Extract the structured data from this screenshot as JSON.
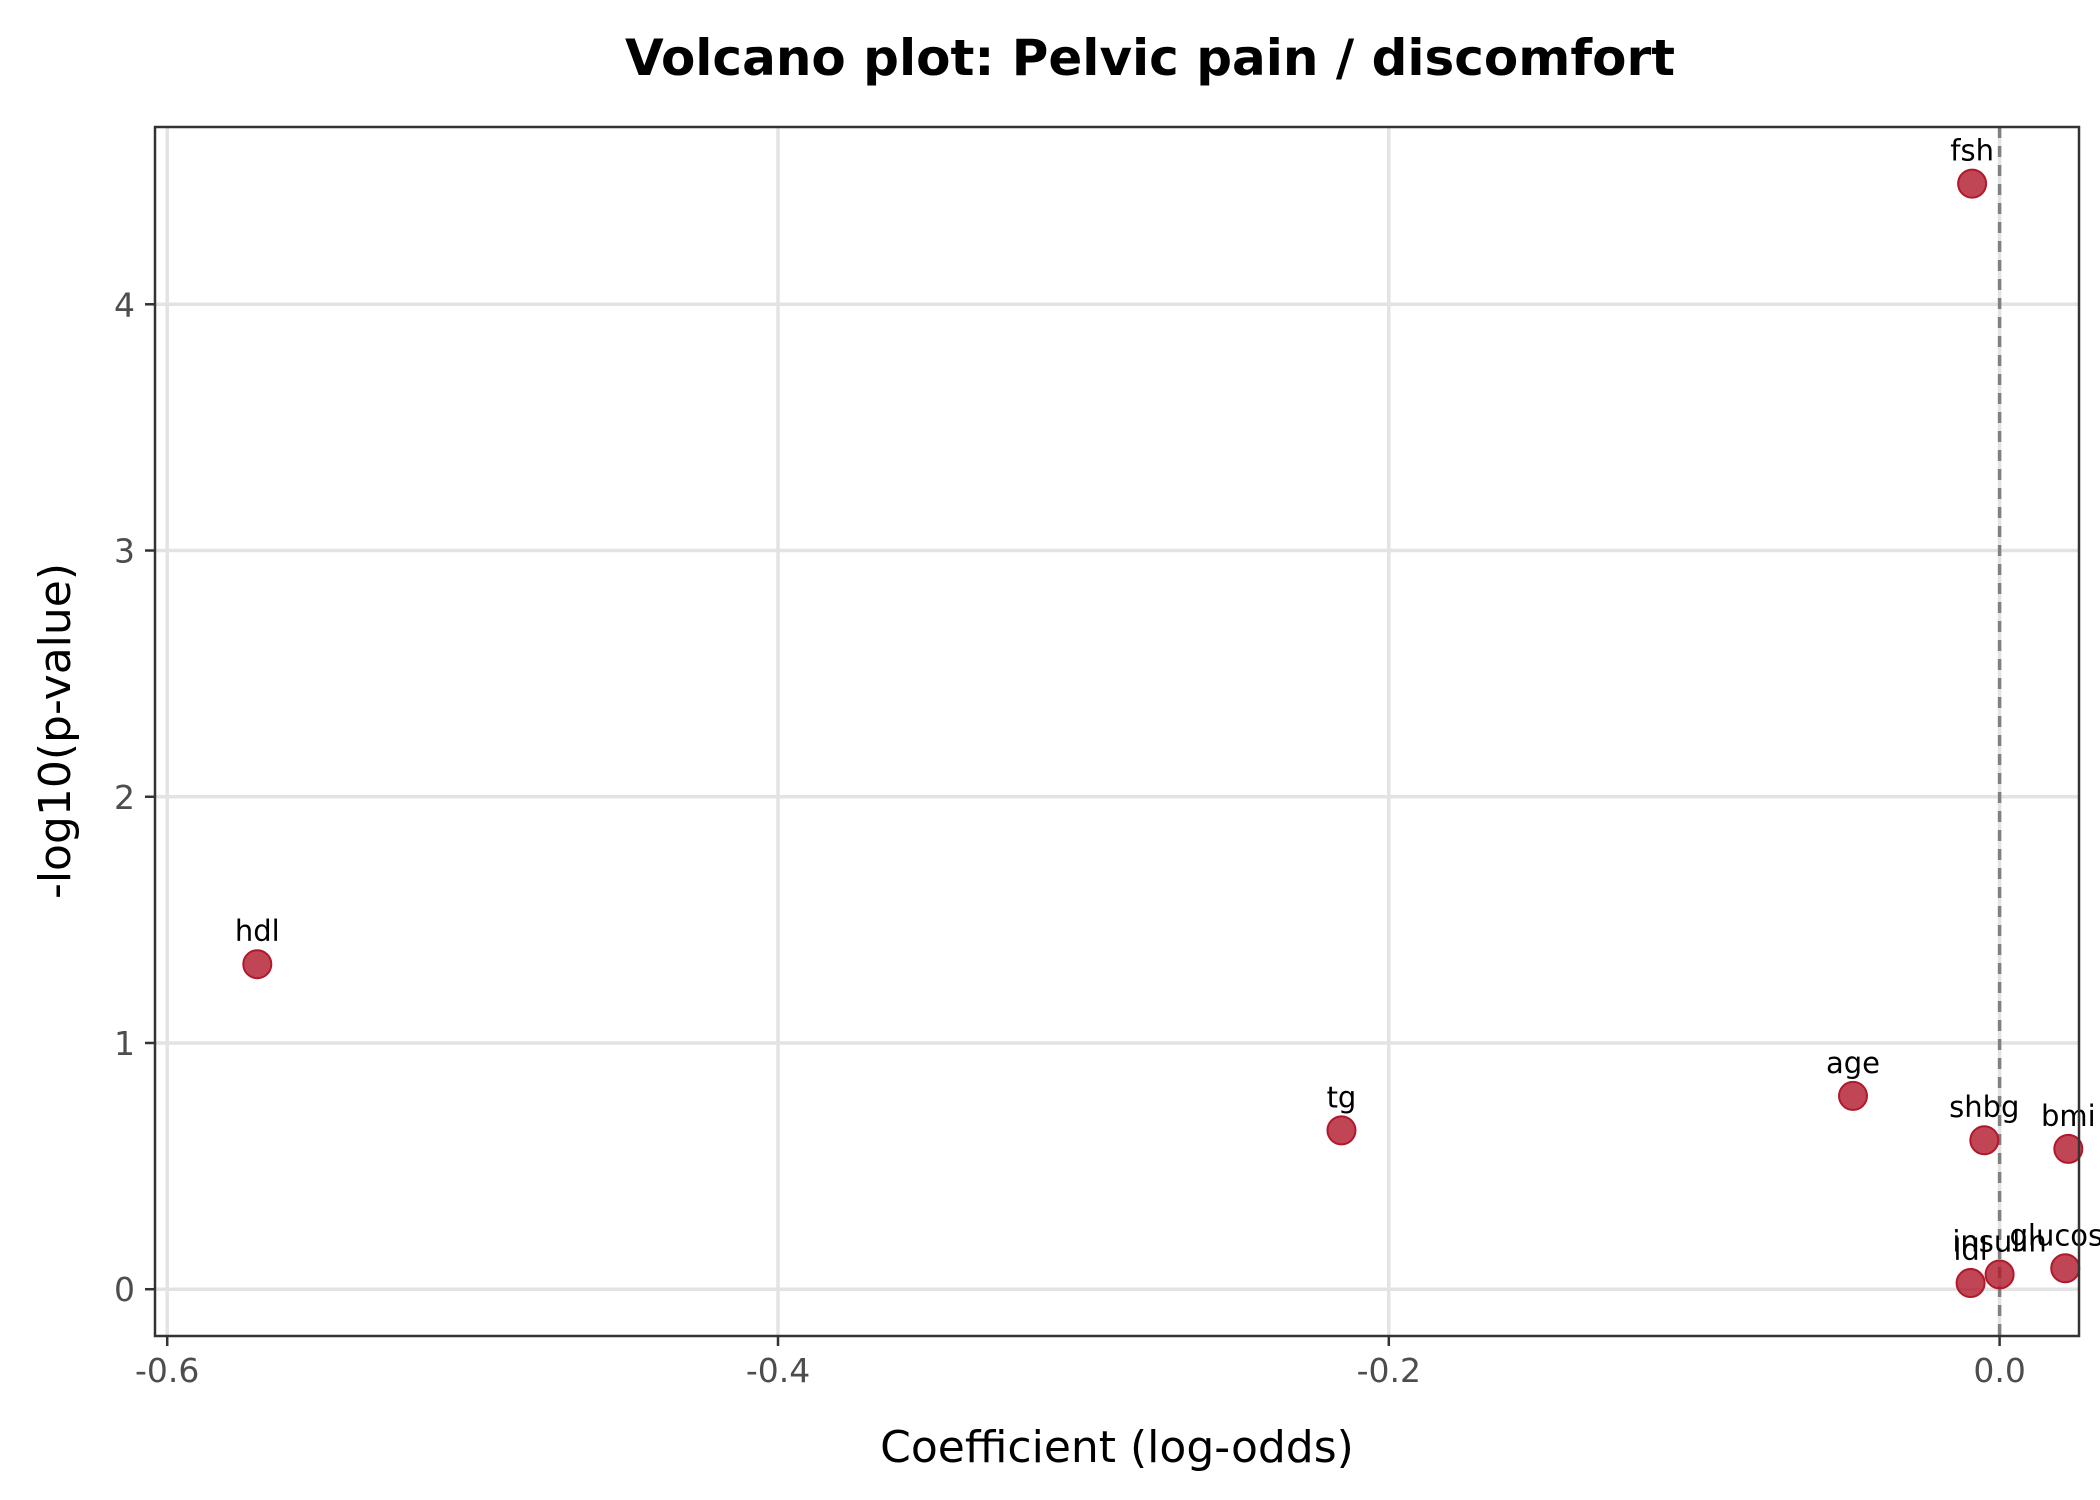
{
  "chart_data": {
    "type": "scatter",
    "title": "Volcano plot: Pelvic pain / discomfort",
    "xlabel": "Coefficient (log-odds)",
    "ylabel": "-log10(p-value)",
    "xlim": [
      -0.604,
      0.026
    ],
    "ylim": [
      -0.19,
      4.72
    ],
    "x_ticks": [
      -0.6,
      -0.4,
      -0.2,
      0.0
    ],
    "x_tick_labels": [
      "-0.6",
      "-0.4",
      "-0.2",
      "0.0"
    ],
    "y_ticks": [
      0,
      1,
      2,
      3,
      4
    ],
    "y_tick_labels": [
      "0",
      "1",
      "2",
      "3",
      "4"
    ],
    "grid": true,
    "reference_line": {
      "x": 0,
      "style": "dashed",
      "color": "#808080"
    },
    "point_color": "#b2182b",
    "points": [
      {
        "label": "fsh",
        "x": -0.009,
        "y": 4.49
      },
      {
        "label": "hdl",
        "x": -0.5705,
        "y": 1.32
      },
      {
        "label": "tg",
        "x": -0.2155,
        "y": 0.645
      },
      {
        "label": "age",
        "x": -0.048,
        "y": 0.785
      },
      {
        "label": "shbg",
        "x": -0.005,
        "y": 0.605
      },
      {
        "label": "bmi",
        "x": 0.0225,
        "y": 0.57
      },
      {
        "label": "glucose",
        "x": 0.0215,
        "y": 0.085
      },
      {
        "label": "insulin",
        "x": 0.0,
        "y": 0.06
      },
      {
        "label": "ldl",
        "x": -0.0095,
        "y": 0.025
      }
    ]
  }
}
